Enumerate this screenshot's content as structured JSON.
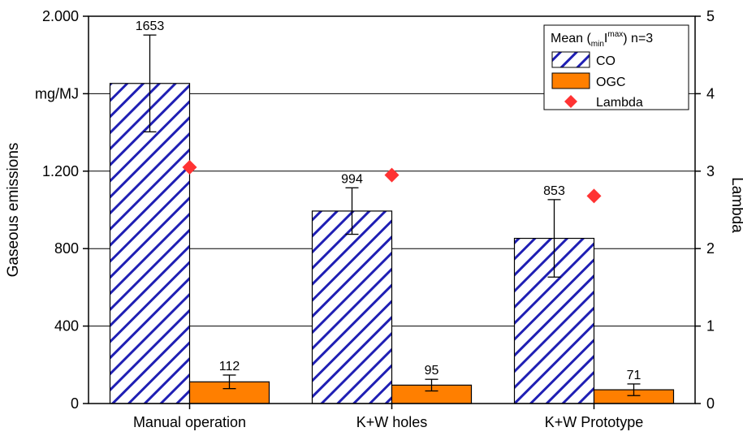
{
  "chart_data": {
    "type": "bar",
    "categories": [
      "Manual operation",
      "K+W holes",
      "K+W Prototype"
    ],
    "series": [
      {
        "name": "CO",
        "values": [
          1653,
          994,
          853
        ],
        "error": [
          250,
          120,
          200
        ],
        "color": "#1f1fb4",
        "pattern": "diagonal-hatch"
      },
      {
        "name": "OGC",
        "values": [
          112,
          95,
          71
        ],
        "error": [
          35,
          30,
          30
        ],
        "color": "#ff7f00",
        "pattern": "solid"
      }
    ],
    "secondary_series": [
      {
        "name": "Lambda",
        "values": [
          3.05,
          2.95,
          2.68
        ],
        "axis": "right",
        "marker": "diamond",
        "color": "#ff3333"
      }
    ],
    "ylabel": "Gaseous emissions",
    "y2label": "Lambda",
    "ylim": [
      0,
      2000
    ],
    "y2lim": [
      0,
      5
    ],
    "yticks": [
      {
        "value": 0,
        "label": "0"
      },
      {
        "value": 400,
        "label": "400"
      },
      {
        "value": 800,
        "label": "800"
      },
      {
        "value": 1200,
        "label": "1.200"
      },
      {
        "value": 1600,
        "label": "mg/MJ"
      },
      {
        "value": 2000,
        "label": "2.000"
      }
    ],
    "y2ticks": [
      {
        "value": 0,
        "label": "0"
      },
      {
        "value": 1,
        "label": "1"
      },
      {
        "value": 2,
        "label": "2"
      },
      {
        "value": 3,
        "label": "3"
      },
      {
        "value": 4,
        "label": "4"
      },
      {
        "value": 5,
        "label": "5"
      }
    ],
    "grid": "horizontal",
    "legend_position": "top-right",
    "legend_title": {
      "prefix": "Mean (",
      "sub": "min",
      "main": "I",
      "sup": "max",
      "suffix": ") n=3"
    }
  }
}
